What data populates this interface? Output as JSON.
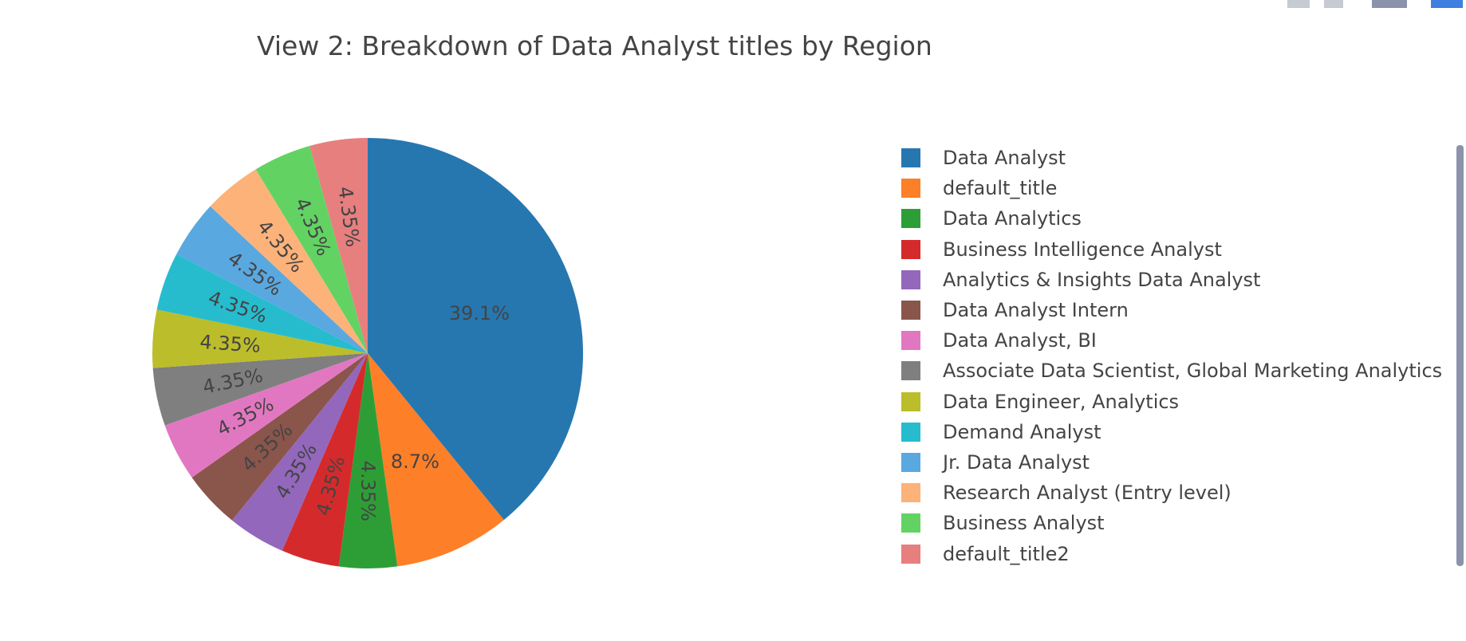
{
  "chart_data": {
    "type": "pie",
    "title": "View 2: Breakdown of Data Analyst titles by Region",
    "slices": [
      {
        "label": "Data Analyst",
        "value": 39.1,
        "text": "39.1%",
        "color": "#2677b0"
      },
      {
        "label": "default_title",
        "value": 8.7,
        "text": "8.7%",
        "color": "#fd7f27"
      },
      {
        "label": "Data Analytics",
        "value": 4.35,
        "text": "4.35%",
        "color": "#2d9e36"
      },
      {
        "label": "Business Intelligence Analyst",
        "value": 4.35,
        "text": "4.35%",
        "color": "#d52a2b"
      },
      {
        "label": "Analytics & Insights Data Analyst",
        "value": 4.35,
        "text": "4.35%",
        "color": "#9367bc"
      },
      {
        "label": "Data Analyst Intern",
        "value": 4.35,
        "text": "4.35%",
        "color": "#8a554b"
      },
      {
        "label": "Data Analyst, BI",
        "value": 4.35,
        "text": "4.35%",
        "color": "#e277c1"
      },
      {
        "label": "Associate Data Scientist, Global Marketing Analytics",
        "value": 4.35,
        "text": "4.35%",
        "color": "#7f7f7f"
      },
      {
        "label": "Data Engineer, Analytics",
        "value": 4.35,
        "text": "4.35%",
        "color": "#bcbd2a"
      },
      {
        "label": "Demand Analyst",
        "value": 4.35,
        "text": "4.35%",
        "color": "#26bcce"
      },
      {
        "label": "Jr. Data Analyst",
        "value": 4.35,
        "text": "4.35%",
        "color": "#5aa8e0"
      },
      {
        "label": "Research Analyst (Entry level)",
        "value": 4.35,
        "text": "4.35%",
        "color": "#fdb27a"
      },
      {
        "label": "Business Analyst",
        "value": 4.35,
        "text": "4.35%",
        "color": "#62d363"
      },
      {
        "label": "default_title2",
        "value": 4.35,
        "text": "4.35%",
        "color": "#e77f7f"
      }
    ],
    "legend_position": "right",
    "direction": "clockwise",
    "start": "top"
  },
  "text_color": "#444444"
}
